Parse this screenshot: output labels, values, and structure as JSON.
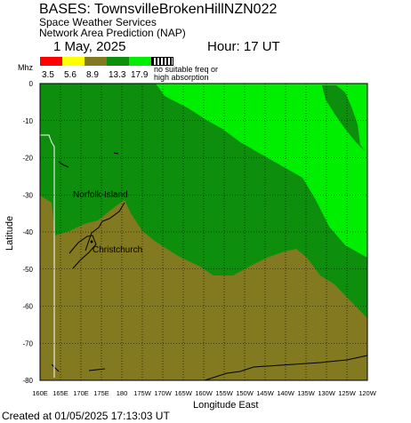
{
  "header": {
    "title": "BASES: TownsvilleBrokenHillNZN022",
    "subtitle1": "Space Weather Services",
    "subtitle2": "Network Area Prediction (NAP)",
    "date": "1 May, 2025",
    "hour": "Hour: 17 UT"
  },
  "legend": {
    "unit": "Mhz",
    "colors": [
      "#ff0000",
      "#ffff00",
      "#837920",
      "#0d8f0d",
      "#00ee00",
      "#ffffff"
    ],
    "values": [
      "3.5",
      "5.6",
      "8.9",
      "13.3",
      "17.9"
    ],
    "no_suitable_line1": "no suitable freq or",
    "no_suitable_line2": "high absorption"
  },
  "axes": {
    "ylabel": "Latitude",
    "xlabel": "Longitude East",
    "y_ticks": [
      "0",
      "-10",
      "-20",
      "-30",
      "-40",
      "-50",
      "-60",
      "-70",
      "-80"
    ],
    "x_ticks": [
      "160E",
      "165E",
      "170E",
      "175E",
      "180",
      "175W",
      "170W",
      "165W",
      "160W",
      "155W",
      "150W",
      "145W",
      "140W",
      "135W",
      "130W",
      "125W",
      "120W"
    ],
    "lat_range": [
      0,
      -80
    ],
    "lon_range": [
      "160E",
      "120W"
    ]
  },
  "places": [
    {
      "name": "Norfolk-Island"
    },
    {
      "name": "Christchurch"
    }
  ],
  "zone_colors": {
    "olive": "#837920",
    "dark_green": "#0d8f0d",
    "light_green": "#00ee00"
  },
  "footer": {
    "created": "Created at 01/05/2025 17:13:03 UT"
  }
}
